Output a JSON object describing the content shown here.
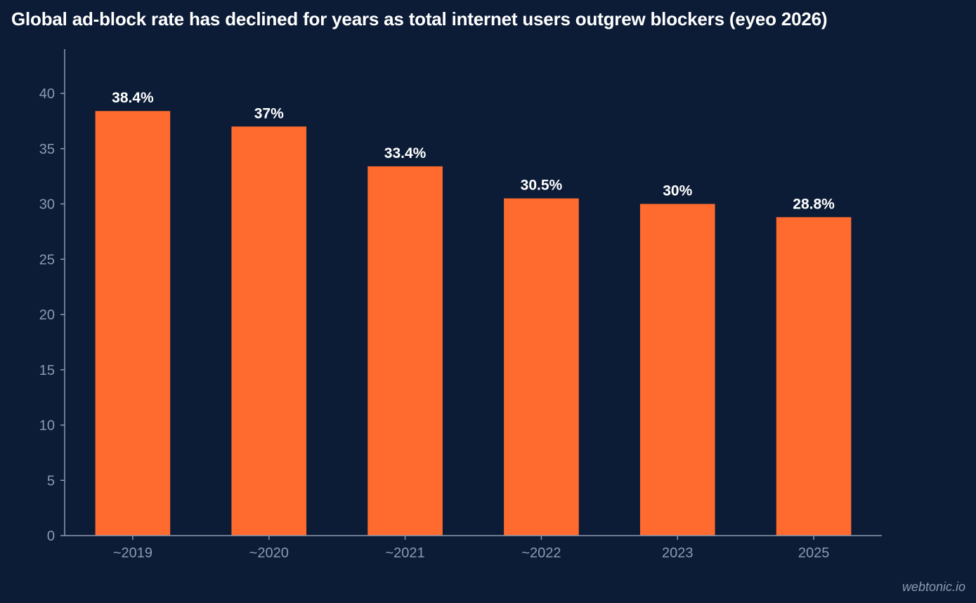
{
  "colors": {
    "background": "#0c1c36",
    "bar": "#ff6b2e",
    "axis": "#8b9ab0",
    "label": "#ffffff"
  },
  "watermark": "webtonic.io",
  "chart_data": {
    "type": "bar",
    "title": "Global ad-block rate has declined for years as total internet users outgrew blockers (eyeo 2026)",
    "xlabel": "",
    "ylabel": "",
    "categories": [
      "~2019",
      "~2020",
      "~2021",
      "~2022",
      "2023",
      "2025"
    ],
    "values": [
      38.4,
      37,
      33.4,
      30.5,
      30,
      28.8
    ],
    "value_labels": [
      "38.4%",
      "37%",
      "33.4%",
      "30.5%",
      "30%",
      "28.8%"
    ],
    "ylim": [
      0,
      44
    ],
    "yticks": [
      0,
      5,
      10,
      15,
      20,
      25,
      30,
      35,
      40
    ],
    "grid": false,
    "legend": "none"
  }
}
